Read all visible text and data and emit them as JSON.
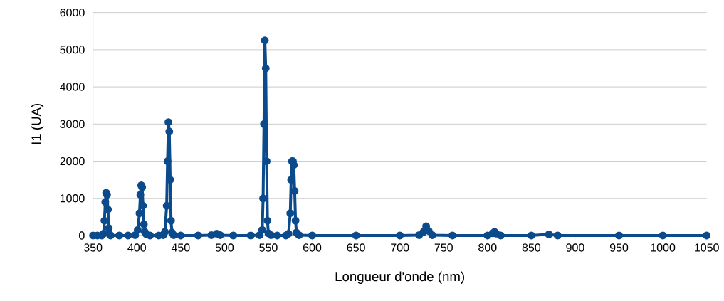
{
  "chart_data": {
    "type": "line",
    "xlabel": "Longueur d'onde (nm)",
    "ylabel": "I1 (UA)",
    "color": "#0b4a8b",
    "marker": "circle",
    "grid": "y",
    "x": [
      350,
      355,
      360,
      362,
      363,
      364,
      365,
      366,
      367,
      368,
      369,
      370,
      380,
      390,
      398,
      401,
      403,
      404,
      405,
      406,
      407,
      408,
      409,
      411,
      415,
      425,
      430,
      432,
      434,
      435,
      436,
      437,
      438,
      439,
      440,
      442,
      450,
      470,
      485,
      491,
      495,
      510,
      530,
      540,
      543,
      544,
      545,
      546,
      547,
      548,
      549,
      550,
      553,
      560,
      570,
      573,
      575,
      576,
      577,
      578,
      579,
      580,
      581,
      582,
      585,
      600,
      650,
      700,
      722,
      727,
      730,
      733,
      737,
      760,
      800,
      806,
      808,
      810,
      815,
      850,
      870,
      880,
      950,
      1000,
      1050
    ],
    "values": [
      0,
      0,
      0,
      50,
      400,
      900,
      1150,
      1100,
      700,
      200,
      30,
      0,
      0,
      0,
      10,
      150,
      600,
      1100,
      1350,
      1300,
      800,
      300,
      100,
      30,
      0,
      0,
      10,
      100,
      800,
      2000,
      3050,
      2800,
      1500,
      400,
      80,
      10,
      0,
      0,
      10,
      50,
      10,
      0,
      0,
      10,
      150,
      1000,
      3000,
      5250,
      4500,
      2000,
      400,
      60,
      10,
      0,
      0,
      50,
      600,
      1500,
      2000,
      2000,
      1900,
      1200,
      400,
      80,
      10,
      0,
      0,
      0,
      10,
      100,
      250,
      120,
      10,
      0,
      0,
      60,
      100,
      50,
      0,
      0,
      30,
      0,
      0,
      0,
      0
    ],
    "xlim": [
      350,
      1050
    ],
    "xticks": [
      350,
      400,
      450,
      500,
      550,
      600,
      650,
      700,
      750,
      800,
      850,
      900,
      950,
      1000,
      1050
    ],
    "ylim": [
      0,
      6000
    ],
    "yticks": [
      0,
      1000,
      2000,
      3000,
      4000,
      5000,
      6000
    ]
  }
}
